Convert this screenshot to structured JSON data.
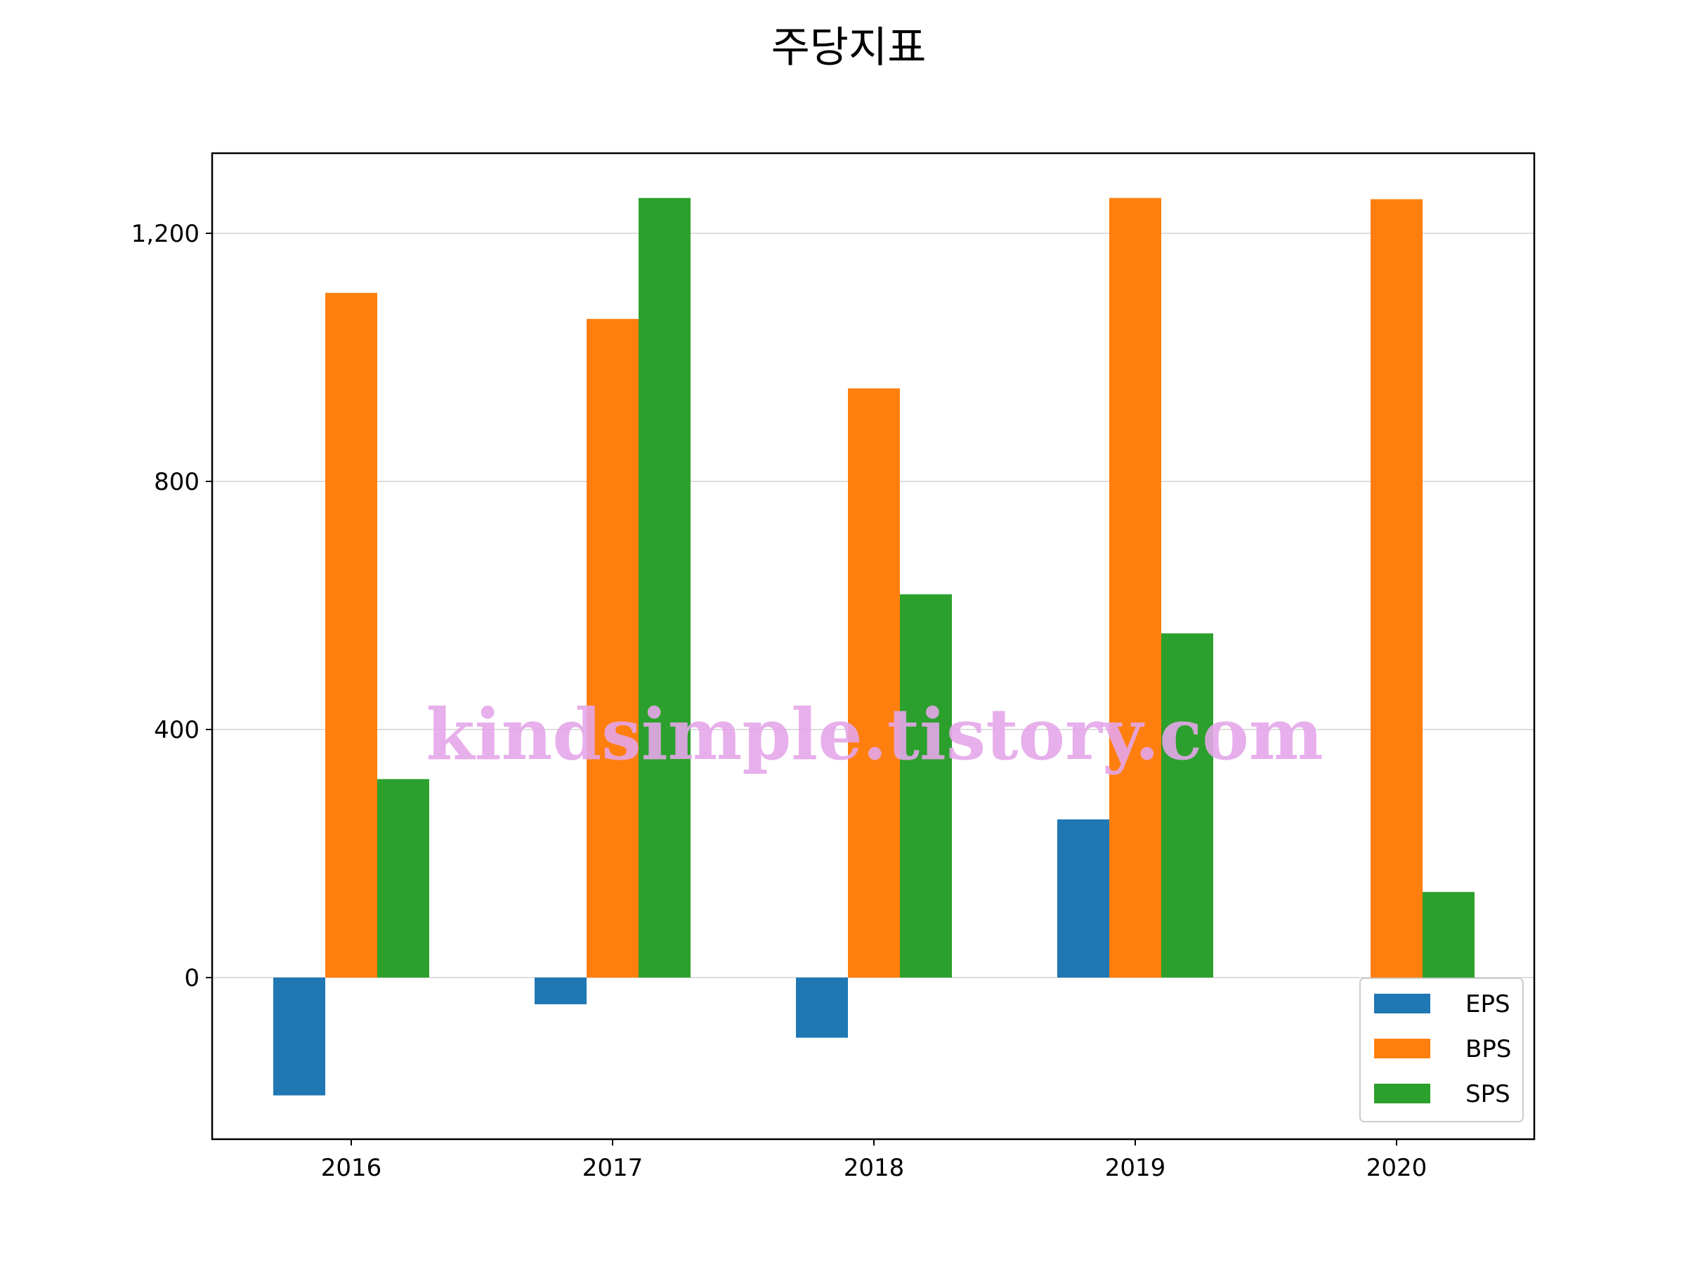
{
  "chart_data": {
    "type": "bar",
    "title": "주당지표",
    "xlabel": "",
    "ylabel": "",
    "categories": [
      "2016",
      "2017",
      "2018",
      "2019",
      "2020"
    ],
    "series": [
      {
        "name": "EPS",
        "color": "#1f77b4",
        "values": [
          -190,
          -43,
          -97,
          255,
          0
        ]
      },
      {
        "name": "BPS",
        "color": "#ff7f0e",
        "values": [
          1104,
          1062,
          950,
          1257,
          1255
        ]
      },
      {
        "name": "SPS",
        "color": "#2ca02c",
        "values": [
          320,
          1257,
          618,
          555,
          138
        ]
      }
    ],
    "ylim": [
      -260,
      1330
    ],
    "yticks": [
      0,
      400,
      800,
      1200
    ],
    "ytick_labels": [
      "0",
      "400",
      "800",
      "1,200"
    ],
    "grid": "horizontal",
    "legend_position": "lower-right"
  },
  "watermark": {
    "text": "kindsimple.tistory.com",
    "color": "#e4a6e9"
  }
}
